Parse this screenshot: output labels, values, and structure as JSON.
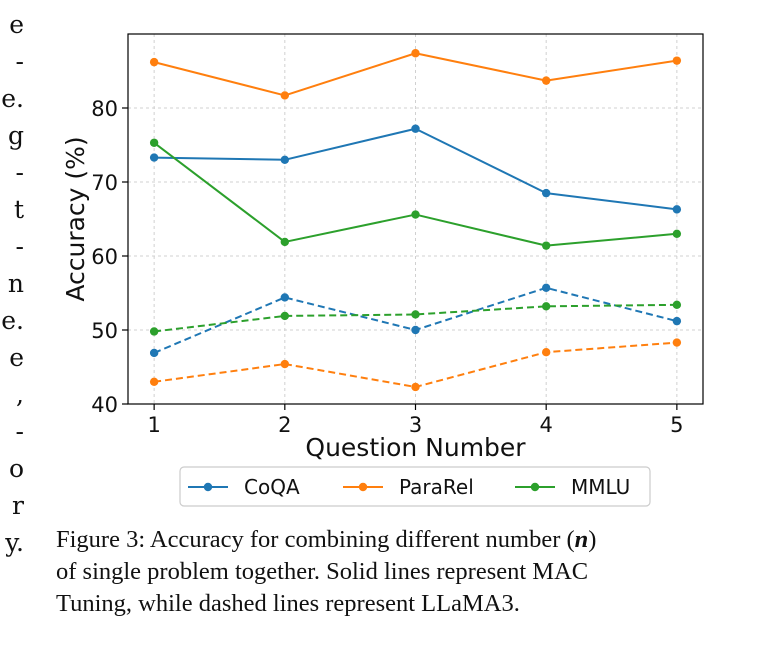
{
  "margin_fragments": [
    "e",
    "-",
    "e.",
    "g",
    "-",
    "t",
    "-",
    "n",
    "e.",
    "e",
    ",",
    "-",
    "o",
    "r",
    "y."
  ],
  "caption": {
    "lines": [
      [
        "Figure 3: Accuracy for combining different number (",
        "n",
        ")"
      ],
      [
        "of single problem together. Solid lines represent MAC"
      ],
      [
        "Tuning, while dashed lines represent LLaMA3."
      ]
    ]
  },
  "chart_data": {
    "type": "line",
    "title": "",
    "xlabel": "Question Number",
    "ylabel": "Accuracy (%)",
    "x": [
      1,
      2,
      3,
      4,
      5
    ],
    "xticks": [
      "1",
      "2",
      "3",
      "4",
      "5"
    ],
    "yticks": [
      40,
      50,
      60,
      70,
      80
    ],
    "xlim": [
      0.8,
      5.2
    ],
    "ylim": [
      40,
      90
    ],
    "grid": true,
    "legend_position": "bottom-center",
    "legend": [
      "CoQA",
      "ParaRel",
      "MMLU"
    ],
    "series": [
      {
        "name": "CoQA",
        "method": "MAC Tuning",
        "style": "solid",
        "color": "#1f77b4",
        "values": [
          73.3,
          73.0,
          77.2,
          68.5,
          66.3
        ]
      },
      {
        "name": "ParaRel",
        "method": "MAC Tuning",
        "style": "solid",
        "color": "#ff7f0e",
        "values": [
          86.2,
          81.7,
          87.4,
          83.7,
          86.4
        ]
      },
      {
        "name": "MMLU",
        "method": "MAC Tuning",
        "style": "solid",
        "color": "#2ca02c",
        "values": [
          75.3,
          61.9,
          65.6,
          61.4,
          63.0
        ]
      },
      {
        "name": "CoQA",
        "method": "LLaMA3",
        "style": "dashed",
        "color": "#1f77b4",
        "values": [
          46.9,
          54.4,
          50.0,
          55.7,
          51.2
        ]
      },
      {
        "name": "ParaRel",
        "method": "LLaMA3",
        "style": "dashed",
        "color": "#ff7f0e",
        "values": [
          43.0,
          45.4,
          42.3,
          47.0,
          48.3
        ]
      },
      {
        "name": "MMLU",
        "method": "LLaMA3",
        "style": "dashed",
        "color": "#2ca02c",
        "values": [
          49.8,
          51.9,
          52.1,
          53.2,
          53.4
        ]
      }
    ]
  }
}
